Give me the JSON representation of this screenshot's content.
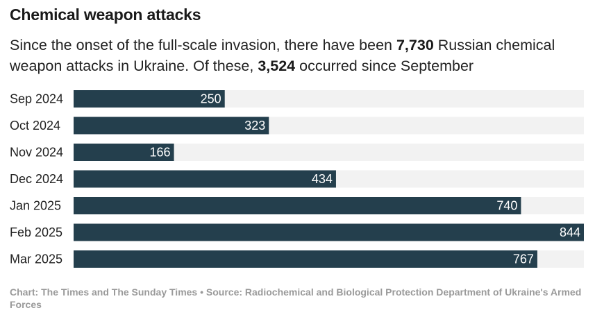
{
  "title": "Chemical weapon attacks",
  "subtitle": {
    "part1": "Since the onset of the full-scale invasion, there have been ",
    "highlight1": "7,730",
    "part2": " Russian chemical weapon attacks in Ukraine. Of these, ",
    "highlight2": "3,524",
    "part3": " occurred since September"
  },
  "footer": "Chart: The Times and The Sunday Times • Source: Radiochemical and Biological Protection Department of Ukraine's Armed Forces",
  "colors": {
    "bar": "#243f4d",
    "track": "#f2f2f2",
    "label": "#ffffff"
  },
  "chart_data": {
    "type": "bar",
    "orientation": "horizontal",
    "categories": [
      "Sep 2024",
      "Oct 2024",
      "Nov 2024",
      "Dec 2024",
      "Jan 2025",
      "Feb 2025",
      "Mar 2025"
    ],
    "values": [
      250,
      323,
      166,
      434,
      740,
      844,
      767
    ],
    "xlim": [
      0,
      844
    ],
    "data_labels": true,
    "grid": false,
    "legend": "none"
  }
}
